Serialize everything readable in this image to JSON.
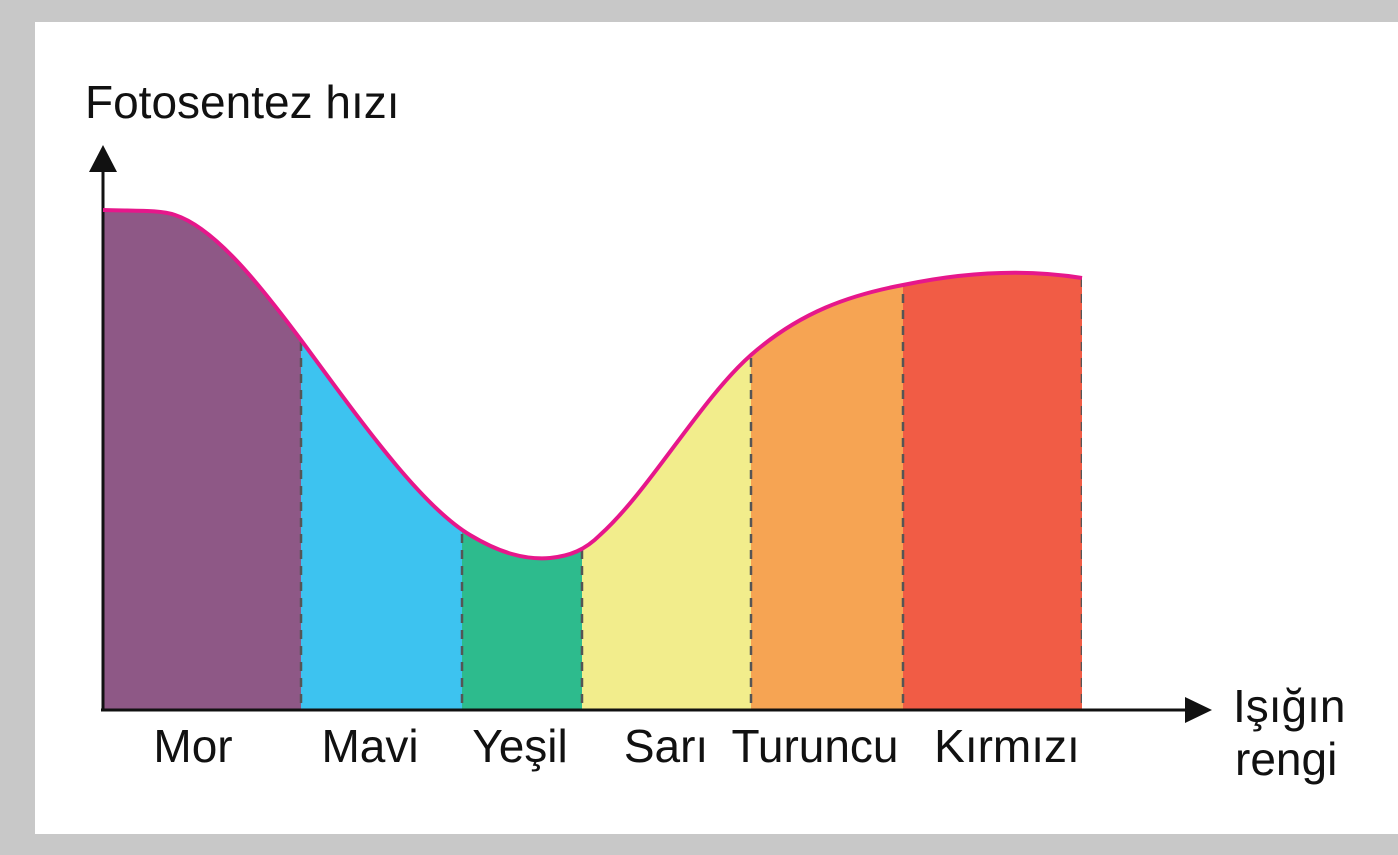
{
  "axis": {
    "y_label": "Fotosentez hızı",
    "x_label": [
      "Işığın",
      "rengi"
    ]
  },
  "bands": [
    {
      "label": "Mor",
      "color": "#8e5886"
    },
    {
      "label": "Mavi",
      "color": "#3dc3f0"
    },
    {
      "label": "Yeşil",
      "color": "#2dbb8d"
    },
    {
      "label": "Sarı",
      "color": "#f2ed8c"
    },
    {
      "label": "Turuncu",
      "color": "#f6a453"
    },
    {
      "label": "Kırmızı",
      "color": "#f15c45"
    }
  ],
  "curve_color": "#e6178b"
}
